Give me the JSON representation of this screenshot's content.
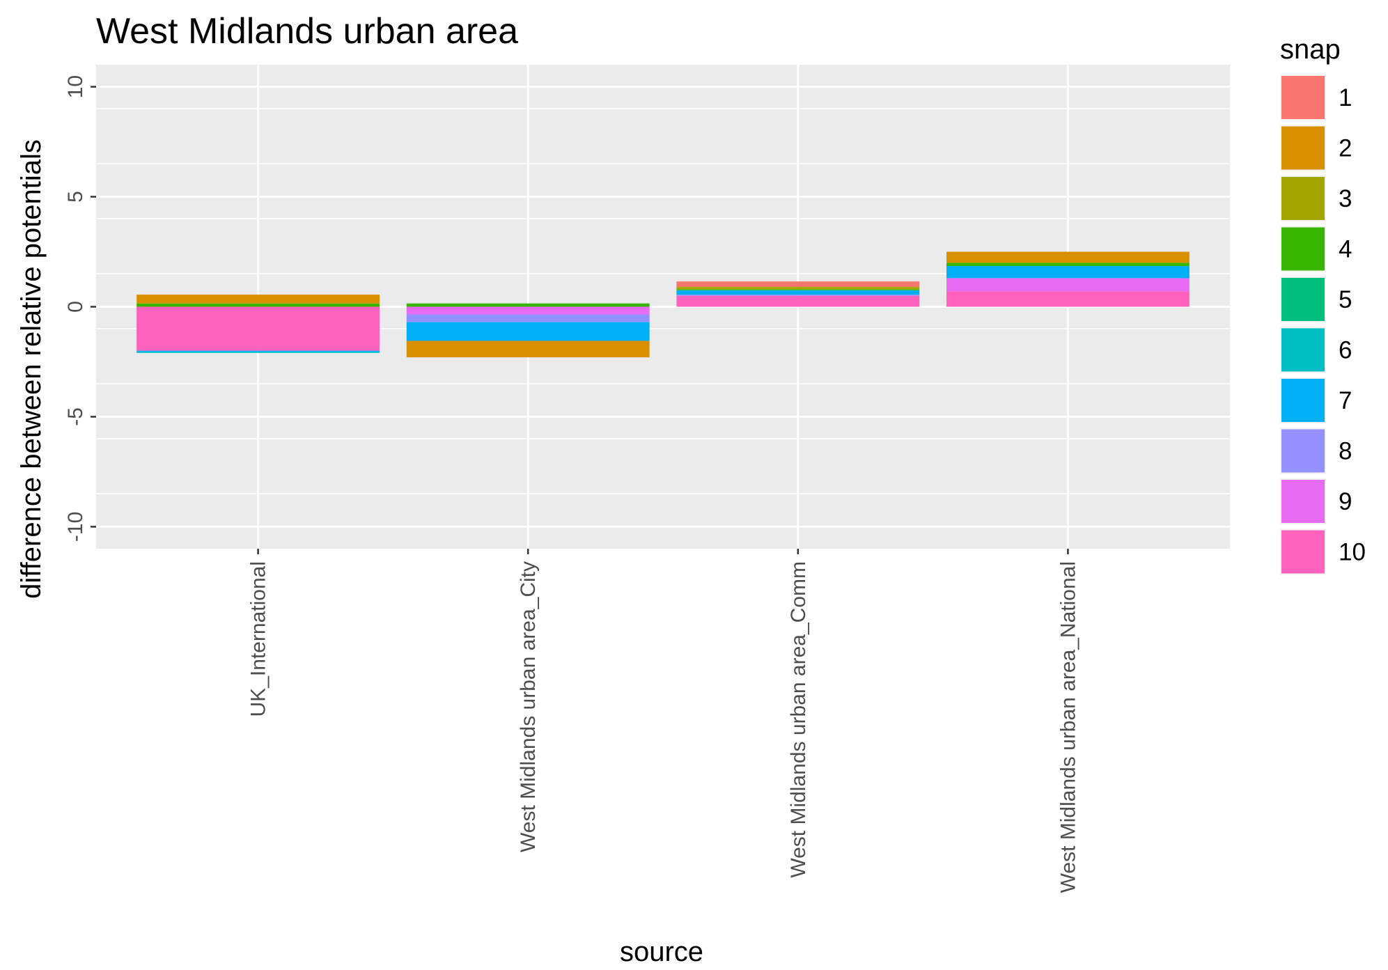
{
  "chart_data": {
    "type": "bar",
    "stacked": true,
    "title": "West Midlands urban area",
    "xlabel": "source",
    "ylabel": "difference between relative potentials",
    "categories": [
      "UK_International",
      "West Midlands urban area_City",
      "West Midlands urban area_Comm",
      "West Midlands urban area_National"
    ],
    "ylim": [
      -11,
      11
    ],
    "yticks": [
      -10,
      -5,
      0,
      5,
      10
    ],
    "grid": true,
    "legend": {
      "title": "snap",
      "placement": "right",
      "entries": [
        "1",
        "2",
        "3",
        "4",
        "5",
        "6",
        "7",
        "8",
        "9",
        "10"
      ]
    },
    "colors": [
      "#F8766D",
      "#D89000",
      "#A3A500",
      "#39B600",
      "#00BF7D",
      "#00BFC4",
      "#00B0F6",
      "#9590FF",
      "#E76BF3",
      "#FF62BC"
    ],
    "series": [
      {
        "name": "1",
        "values": [
          0.0,
          0.0,
          0.25,
          0.0
        ]
      },
      {
        "name": "2",
        "values": [
          0.4,
          -0.75,
          0.0,
          0.5
        ]
      },
      {
        "name": "3",
        "values": [
          0.0,
          0.0,
          0.1,
          0.0
        ]
      },
      {
        "name": "4",
        "values": [
          0.15,
          0.15,
          0.05,
          0.15
        ]
      },
      {
        "name": "5",
        "values": [
          0.0,
          0.0,
          0.0,
          0.0
        ]
      },
      {
        "name": "6",
        "values": [
          -0.05,
          0.0,
          0.0,
          0.0
        ]
      },
      {
        "name": "7",
        "values": [
          -0.05,
          -0.85,
          0.2,
          0.55
        ]
      },
      {
        "name": "8",
        "values": [
          0.0,
          -0.35,
          0.05,
          0.0
        ]
      },
      {
        "name": "9",
        "values": [
          0.0,
          -0.35,
          0.0,
          0.6
        ]
      },
      {
        "name": "10",
        "values": [
          -2.0,
          0.0,
          0.5,
          0.7
        ]
      }
    ]
  }
}
